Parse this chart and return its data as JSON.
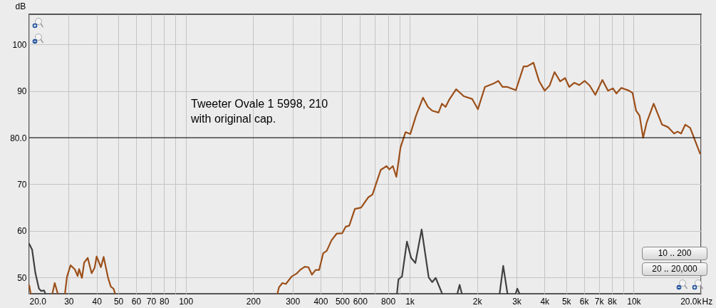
{
  "chart_data": {
    "type": "line",
    "ylabel": "dB",
    "xlim": [
      20,
      20000
    ],
    "ylim": [
      46.5,
      106.5
    ],
    "xticks": [
      {
        "value": 20,
        "label": "20.0"
      },
      30,
      40,
      50,
      60,
      70,
      80,
      {
        "value": 90,
        "label": null
      },
      100,
      200,
      300,
      400,
      500,
      600,
      {
        "value": 700,
        "label": null
      },
      800,
      {
        "value": 900,
        "label": null
      },
      {
        "value": 1000,
        "label": "1k"
      },
      {
        "value": 2000,
        "label": "2k"
      },
      {
        "value": 3000,
        "label": "3k"
      },
      {
        "value": 4000,
        "label": "4k"
      },
      {
        "value": 5000,
        "label": "5k"
      },
      {
        "value": 6000,
        "label": "6k"
      },
      {
        "value": 7000,
        "label": "7k"
      },
      {
        "value": 8000,
        "label": "8k"
      },
      {
        "value": 9000,
        "label": null
      },
      {
        "value": 10000,
        "label": "10k"
      },
      {
        "value": 20000,
        "label": "20.0k"
      }
    ],
    "xlabel": "Hz",
    "yticks": [
      50,
      60,
      70,
      {
        "value": 80,
        "label": "80.0"
      },
      90,
      100
    ],
    "log": "x",
    "grid": true,
    "line_style": "solid",
    "ref_lines": [
      {
        "axis": "y",
        "value": 80,
        "color": "#000000"
      }
    ],
    "annotations": [
      "Tweeter Ovale 1  5998, 210\n with original cap.",
      "10 .. 200",
      "20 .. 20,000"
    ],
    "series": [
      {
        "color": "#9c4f19",
        "x": [
          20,
          20.3,
          20.5,
          25.4,
          26.0,
          26.8,
          27.5,
          28.9,
          29.5,
          30.6,
          32.0,
          32.9,
          33.4,
          34.4,
          35.2,
          36.5,
          38.0,
          39.2,
          40.0,
          41.8,
          43.0,
          45.0,
          46.3,
          47.6,
          48.3,
          100,
          257,
          261,
          270,
          280,
          297,
          312,
          324,
          340,
          353,
          366,
          380,
          394,
          411,
          426,
          448,
          472,
          500,
          518,
          537,
          569,
          607,
          653,
          682,
          743,
          788,
          811,
          841,
          872,
          910,
          958,
          1007,
          1067,
          1147,
          1207,
          1260,
          1345,
          1394,
          1446,
          1499,
          1612,
          1745,
          1903,
          2017,
          2168,
          2364,
          2487,
          2597,
          2732,
          2979,
          3226,
          3345,
          3569,
          3781,
          4006,
          4215,
          4435,
          4698,
          4942,
          5162,
          5429,
          5710,
          6050,
          6366,
          6745,
          7250,
          7685,
          8081,
          8379,
          8813,
          9541,
          9892,
          10257,
          10634,
          11025,
          11430,
          12290,
          13398,
          14206,
          15155,
          15713,
          16293,
          17013,
          17890,
          19800
        ],
        "values": [
          48.3,
          46.6,
          null,
          46.6,
          48.8,
          46.6,
          null,
          46.6,
          50.2,
          52.6,
          51.7,
          50.3,
          51.8,
          49.9,
          53.2,
          54.2,
          50.9,
          52.1,
          54.5,
          52.2,
          54.4,
          49.9,
          48.0,
          47.6,
          46.6,
          null,
          46.6,
          47.9,
          48.8,
          48.6,
          50.2,
          50.8,
          51.6,
          52.3,
          52.2,
          50.6,
          51.6,
          51.6,
          55.2,
          55.7,
          58.0,
          59.4,
          59.5,
          60.9,
          61.1,
          64.7,
          65.0,
          67.2,
          67.8,
          73.1,
          73.9,
          73.2,
          73.9,
          71.6,
          77.9,
          81.2,
          80.8,
          84.7,
          88.6,
          86.6,
          85.8,
          85.4,
          87.3,
          86.6,
          88.1,
          90.4,
          88.9,
          88.3,
          86.1,
          90.9,
          91.6,
          92.2,
          90.9,
          90.9,
          90.2,
          95.3,
          95.3,
          96.1,
          92.2,
          90.1,
          91.2,
          94.1,
          92.1,
          92.8,
          90.9,
          91.8,
          91.3,
          92.2,
          91.2,
          89.2,
          92.4,
          90.1,
          90.6,
          89.5,
          90.7,
          90.1,
          89.6,
          85.8,
          84.7,
          80.0,
          83.2,
          87.3,
          82.8,
          82.3,
          80.9,
          81.3,
          80.9,
          82.8,
          82.1,
          76.6
        ]
      },
      {
        "color": "#404040",
        "x": [
          20,
          20.6,
          21.3,
          22.1,
          22.6,
          23.3,
          23.6,
          30,
          878,
          891,
          924,
          972,
          1015,
          1060,
          1131,
          1216,
          1260,
          1307,
          1394,
          1500,
          1635,
          1671,
          1708,
          2000,
          2523,
          2616,
          2732,
          2900,
          2979,
          3023,
          3089
        ],
        "values": [
          57.2,
          56.0,
          51.0,
          47.6,
          47.1,
          47.2,
          46.6,
          null,
          46.6,
          49.6,
          50.2,
          57.7,
          54.2,
          53.1,
          60.3,
          50.0,
          49.0,
          49.9,
          46.6,
          null,
          46.6,
          48.4,
          46.6,
          null,
          46.6,
          52.5,
          46.6,
          null,
          46.6,
          47.6,
          46.6
        ]
      }
    ]
  }
}
